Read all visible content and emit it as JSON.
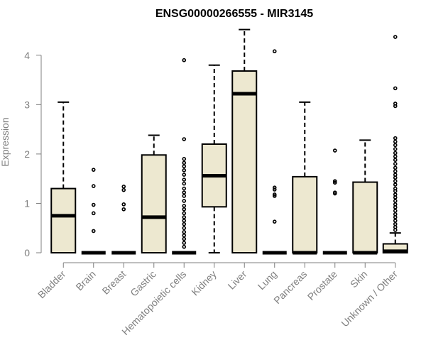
{
  "chart_data": {
    "type": "boxplot",
    "title": "ENSG00000266555 - MIR3145",
    "xlabel": "",
    "ylabel": "Expression",
    "ylim": [
      0,
      4.5
    ],
    "yticks": [
      0,
      1,
      2,
      3,
      4
    ],
    "grid": false,
    "legend": "none",
    "colors": {
      "box_fill": "#ede8d0",
      "box_stroke": "#000000",
      "median": "#000000",
      "outlier_stroke": "#000000",
      "axis": "#7f7f7f",
      "title": "#000000"
    },
    "categories": [
      "Bladder",
      "Brain",
      "Breast",
      "Gastric",
      "Hematopoietic cells",
      "Kidney",
      "Liver",
      "Lung",
      "Pancreas",
      "Prostate",
      "Skin",
      "Unknown / Other"
    ],
    "boxes": [
      {
        "category": "Bladder",
        "whisker_low": 0,
        "q1": 0,
        "median": 0.75,
        "q3": 1.3,
        "whisker_high": 3.05,
        "outliers": []
      },
      {
        "category": "Brain",
        "whisker_low": 0,
        "q1": 0,
        "median": 0,
        "q3": 0,
        "whisker_high": 0,
        "outliers": [
          1.68,
          1.35,
          0.97,
          0.8,
          0.44
        ]
      },
      {
        "category": "Breast",
        "whisker_low": 0,
        "q1": 0,
        "median": 0,
        "q3": 0,
        "whisker_high": 0,
        "outliers": [
          1.34,
          1.27,
          0.98,
          0.88
        ]
      },
      {
        "category": "Gastric",
        "whisker_low": 0,
        "q1": 0,
        "median": 0.72,
        "q3": 1.98,
        "whisker_high": 2.38,
        "outliers": []
      },
      {
        "category": "Hematopoietic cells",
        "whisker_low": 0,
        "q1": 0,
        "median": 0,
        "q3": 0,
        "whisker_high": 0,
        "outliers": [
          3.9,
          2.3,
          1.9,
          1.82,
          1.75,
          1.67,
          1.58,
          1.48,
          1.4,
          1.3,
          1.22,
          1.15,
          1.05,
          0.95,
          0.88,
          0.8,
          0.72,
          0.65,
          0.58,
          0.5,
          0.42,
          0.35,
          0.28,
          0.2,
          0.12
        ]
      },
      {
        "category": "Kidney",
        "whisker_low": 0,
        "q1": 0.93,
        "median": 1.56,
        "q3": 2.2,
        "whisker_high": 3.8,
        "outliers": []
      },
      {
        "category": "Liver",
        "whisker_low": 0,
        "q1": 0,
        "median": 3.22,
        "q3": 3.68,
        "whisker_high": 4.52,
        "outliers": []
      },
      {
        "category": "Lung",
        "whisker_low": 0,
        "q1": 0,
        "median": 0,
        "q3": 0,
        "whisker_high": 0,
        "outliers": [
          4.08,
          1.32,
          1.28,
          1.18,
          1.15,
          0.63
        ]
      },
      {
        "category": "Pancreas",
        "whisker_low": 0,
        "q1": 0,
        "median": 0,
        "q3": 1.54,
        "whisker_high": 3.05,
        "outliers": []
      },
      {
        "category": "Prostate",
        "whisker_low": 0,
        "q1": 0,
        "median": 0,
        "q3": 0,
        "whisker_high": 0,
        "outliers": [
          2.07,
          1.45,
          1.42,
          1.22,
          1.2
        ]
      },
      {
        "category": "Skin",
        "whisker_low": 0,
        "q1": 0,
        "median": 0,
        "q3": 1.43,
        "whisker_high": 2.28,
        "outliers": []
      },
      {
        "category": "Unknown / Other",
        "whisker_low": 0,
        "q1": 0,
        "median": 0.03,
        "q3": 0.18,
        "whisker_high": 0.4,
        "outliers": [
          4.37,
          3.33,
          3.02,
          2.97,
          2.32,
          2.25,
          2.18,
          2.1,
          2.02,
          1.95,
          1.88,
          1.8,
          1.72,
          1.65,
          1.58,
          1.52,
          1.45,
          1.38,
          1.3,
          1.25,
          1.18,
          1.12,
          1.05,
          0.98,
          0.92,
          0.85,
          0.78,
          0.72,
          0.65,
          0.58,
          0.52,
          0.46
        ]
      }
    ]
  }
}
